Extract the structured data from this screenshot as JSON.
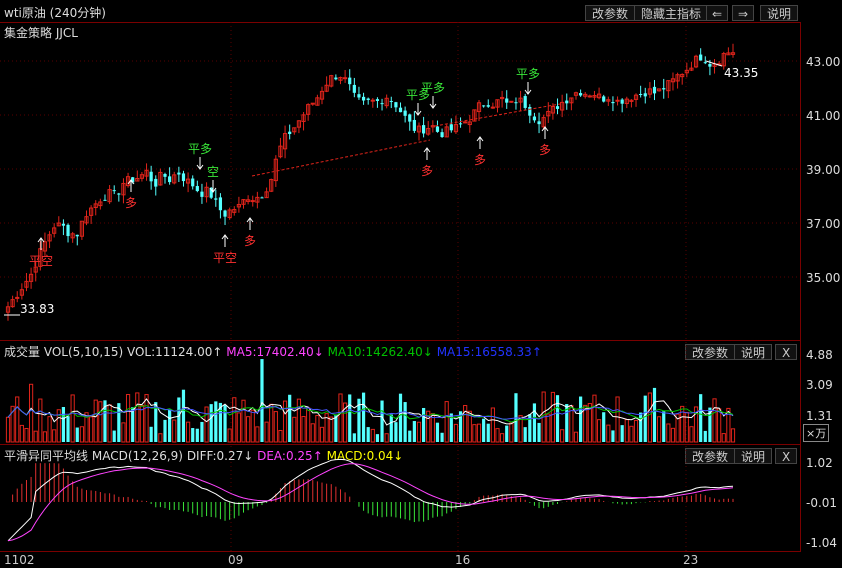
{
  "window": {
    "title": "wti原油 (240分钟)",
    "buttons": {
      "params": "改参数",
      "hide": "隐藏主指标",
      "left": "⇐",
      "right": "⇒",
      "help": "说明"
    }
  },
  "main": {
    "indicator": "集金策略 JJCL",
    "yticks": [
      "43.00",
      "41.00",
      "39.00",
      "37.00",
      "35.00"
    ],
    "last_price": "43.35",
    "low_price": "33.83"
  },
  "volume_panel": {
    "name": "成交量",
    "params_label": "VOL(5,10,15)",
    "vol": "VOL:11124.00↑",
    "ma5": "MA5:17402.40↓",
    "ma10": "MA10:14262.40↓",
    "ma15": "MA15:16558.33↑",
    "btn_params": "改参数",
    "btn_help": "说明",
    "btn_close": "X",
    "yticks": [
      "4.88",
      "3.09",
      "1.31"
    ],
    "unit": "×万"
  },
  "macd_panel": {
    "name": "平滑异同平均线",
    "params_label": "MACD(12,26,9)",
    "diff": "DIFF:0.27↓",
    "dea": "DEA:0.25↑",
    "macd": "MACD:0.04↓",
    "btn_params": "改参数",
    "btn_help": "说明",
    "btn_close": "X",
    "yticks": [
      "1.02",
      "-0.01",
      "-1.04"
    ]
  },
  "x_labels": [
    "1102",
    "09",
    "16",
    "23"
  ],
  "signal_labels": {
    "ping_kong": "平空",
    "ping_duo": "平多",
    "duo": "多",
    "kong": "空"
  },
  "colors": {
    "up": "#e0241b",
    "down": "#54ffff",
    "signal_red": "#ff3030",
    "signal_green": "#39e639",
    "ma5": "#ffffff",
    "ma10": "#ffff00",
    "ma15": "#ff44ff",
    "ma_vol10": "#00c000",
    "ma_vol15": "#4455ff",
    "diff": "#ffffff",
    "dea": "#ff44ff"
  },
  "chart_data": {
    "type": "candlestick",
    "price_range": [
      33.5,
      43.5
    ],
    "close_series": [
      33.9,
      34.3,
      34.7,
      35.1,
      35.8,
      36.4,
      36.9,
      36.9,
      36.6,
      36.6,
      37.3,
      37.6,
      37.9,
      38.1,
      38.0,
      38.5,
      38.6,
      38.7,
      38.9,
      38.4,
      38.8,
      38.6,
      38.9,
      38.6,
      38.4,
      38.1,
      38.2,
      37.7,
      37.3,
      37.5,
      37.6,
      38.0,
      37.9,
      38.1,
      38.5,
      39.6,
      40.2,
      40.5,
      40.9,
      41.3,
      41.6,
      42.1,
      42.4,
      42.5,
      42.2,
      41.6,
      41.4,
      41.5,
      41.5,
      41.7,
      41.5,
      41.1,
      40.7,
      40.4,
      40.5,
      40.6,
      40.3,
      40.4,
      40.5,
      40.7,
      40.9,
      41.3,
      41.5,
      41.4,
      41.6,
      41.3,
      41.6,
      41.4,
      41.0,
      40.8,
      41.0,
      41.3,
      41.5,
      41.7,
      41.9,
      41.8,
      41.8,
      41.6,
      41.7,
      41.5,
      41.6,
      41.7,
      41.8,
      41.9,
      41.8,
      42.0,
      42.2,
      42.5,
      42.7,
      43.0,
      43.2,
      42.9,
      43.0,
      43.3,
      43.35
    ],
    "signals": [
      {
        "label": "平空",
        "index": 9
      },
      {
        "label": "多",
        "index": 33
      },
      {
        "label": "平多",
        "index": 54
      },
      {
        "label": "空",
        "index": 54
      },
      {
        "label": "平空",
        "index": 62
      },
      {
        "label": "多",
        "index": 70
      },
      {
        "label": "平多",
        "index": 111
      },
      {
        "label": "平多",
        "index": 117
      },
      {
        "label": "多",
        "index": 113
      },
      {
        "label": "多",
        "index": 131
      },
      {
        "label": "平多",
        "index": 146
      },
      {
        "label": "多",
        "index": 150
      }
    ]
  }
}
